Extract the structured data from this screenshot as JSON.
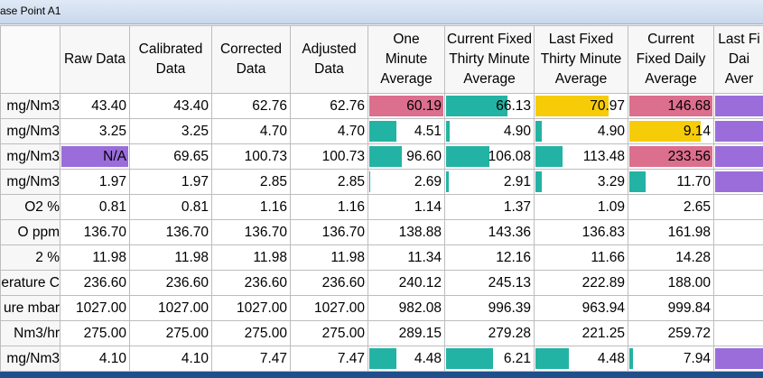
{
  "window": {
    "title": "ase Point A1"
  },
  "colors": {
    "teal": "#23b3a4",
    "pink": "#dc6e8e",
    "yellow": "#f6cc08",
    "purple": "#9b6ddb"
  },
  "columns": [
    "",
    "Raw Data",
    "Calibrated Data",
    "Corrected Data",
    "Adjusted Data",
    "One Minute Average",
    "Current Fixed Thirty Minute Average",
    "Last Fixed Thirty Minute Average",
    "Current Fixed Daily Average",
    "Last Fi Dai Aver"
  ],
  "rows": [
    {
      "label": "mg/Nm3",
      "cells": [
        {
          "v": "43.40"
        },
        {
          "v": "43.40"
        },
        {
          "v": "62.76"
        },
        {
          "v": "62.76"
        },
        {
          "v": "60.19",
          "color": "pink",
          "fill": 1.0
        },
        {
          "v": "66.13",
          "color": "teal",
          "fill": 0.71
        },
        {
          "v": "70.97",
          "color": "yellow",
          "fill": 0.81
        },
        {
          "v": "146.68",
          "color": "pink",
          "fill": 1.0
        },
        {
          "v": "",
          "color": "purple",
          "fill": 1.0
        }
      ]
    },
    {
      "label": "mg/Nm3",
      "cells": [
        {
          "v": "3.25"
        },
        {
          "v": "3.25"
        },
        {
          "v": "4.70"
        },
        {
          "v": "4.70"
        },
        {
          "v": "4.51",
          "color": "teal",
          "fill": 0.38
        },
        {
          "v": "4.90",
          "color": "teal",
          "fill": 0.06
        },
        {
          "v": "4.90",
          "color": "teal",
          "fill": 0.09
        },
        {
          "v": "9.14",
          "color": "yellow",
          "fill": 0.86
        },
        {
          "v": "",
          "color": "purple",
          "fill": 1.0
        }
      ]
    },
    {
      "label": "mg/Nm3",
      "cells": [
        {
          "v": "N/A",
          "color": "purple",
          "fill": 1.0
        },
        {
          "v": "69.65"
        },
        {
          "v": "100.73"
        },
        {
          "v": "100.73"
        },
        {
          "v": "96.60",
          "color": "teal",
          "fill": 0.45
        },
        {
          "v": "106.08",
          "color": "teal",
          "fill": 0.51
        },
        {
          "v": "113.48",
          "color": "teal",
          "fill": 0.31
        },
        {
          "v": "233.56",
          "color": "pink",
          "fill": 1.0
        },
        {
          "v": "",
          "color": "purple",
          "fill": 1.0
        }
      ]
    },
    {
      "label": "mg/Nm3",
      "cells": [
        {
          "v": "1.97"
        },
        {
          "v": "1.97"
        },
        {
          "v": "2.85"
        },
        {
          "v": "2.85"
        },
        {
          "v": "2.69",
          "color": "teal",
          "fill": 0.04
        },
        {
          "v": "2.91",
          "color": "teal",
          "fill": 0.05
        },
        {
          "v": "3.29",
          "color": "teal",
          "fill": 0.09
        },
        {
          "v": "11.70",
          "color": "teal",
          "fill": 0.21
        },
        {
          "v": "",
          "color": "purple",
          "fill": 1.0
        }
      ]
    },
    {
      "label": "O2 %",
      "cells": [
        {
          "v": "0.81"
        },
        {
          "v": "0.81"
        },
        {
          "v": "1.16"
        },
        {
          "v": "1.16"
        },
        {
          "v": "1.14"
        },
        {
          "v": "1.37"
        },
        {
          "v": "1.09"
        },
        {
          "v": "2.65"
        },
        {
          "v": ""
        }
      ]
    },
    {
      "label": "O ppm",
      "cells": [
        {
          "v": "136.70"
        },
        {
          "v": "136.70"
        },
        {
          "v": "136.70"
        },
        {
          "v": "136.70"
        },
        {
          "v": "138.88"
        },
        {
          "v": "143.36"
        },
        {
          "v": "136.83"
        },
        {
          "v": "161.98"
        },
        {
          "v": ""
        }
      ]
    },
    {
      "label": "2 %",
      "cells": [
        {
          "v": "11.98"
        },
        {
          "v": "11.98"
        },
        {
          "v": "11.98"
        },
        {
          "v": "11.98"
        },
        {
          "v": "11.34"
        },
        {
          "v": "12.16"
        },
        {
          "v": "11.66"
        },
        {
          "v": "14.28"
        },
        {
          "v": ""
        }
      ]
    },
    {
      "label": "erature C",
      "cells": [
        {
          "v": "236.60"
        },
        {
          "v": "236.60"
        },
        {
          "v": "236.60"
        },
        {
          "v": "236.60"
        },
        {
          "v": "240.12"
        },
        {
          "v": "245.13"
        },
        {
          "v": "222.89"
        },
        {
          "v": "188.00"
        },
        {
          "v": ""
        }
      ]
    },
    {
      "label": "ure mbar",
      "cells": [
        {
          "v": "1027.00"
        },
        {
          "v": "1027.00"
        },
        {
          "v": "1027.00"
        },
        {
          "v": "1027.00"
        },
        {
          "v": "982.08"
        },
        {
          "v": "996.39"
        },
        {
          "v": "963.94"
        },
        {
          "v": "999.84"
        },
        {
          "v": ""
        }
      ]
    },
    {
      "label": "Nm3/hr",
      "cells": [
        {
          "v": "275.00"
        },
        {
          "v": "275.00"
        },
        {
          "v": "275.00"
        },
        {
          "v": "275.00"
        },
        {
          "v": "289.15"
        },
        {
          "v": "279.28"
        },
        {
          "v": "221.25"
        },
        {
          "v": "259.72"
        },
        {
          "v": ""
        }
      ]
    },
    {
      "label": "mg/Nm3",
      "cells": [
        {
          "v": "4.10"
        },
        {
          "v": "4.10"
        },
        {
          "v": "7.47"
        },
        {
          "v": "7.47"
        },
        {
          "v": "4.48",
          "color": "teal",
          "fill": 0.38
        },
        {
          "v": "6.21",
          "color": "teal",
          "fill": 0.55
        },
        {
          "v": "4.48",
          "color": "teal",
          "fill": 0.38
        },
        {
          "v": "7.94",
          "color": "teal",
          "fill": 0.06
        },
        {
          "v": "",
          "color": "purple",
          "fill": 1.0
        }
      ]
    }
  ]
}
